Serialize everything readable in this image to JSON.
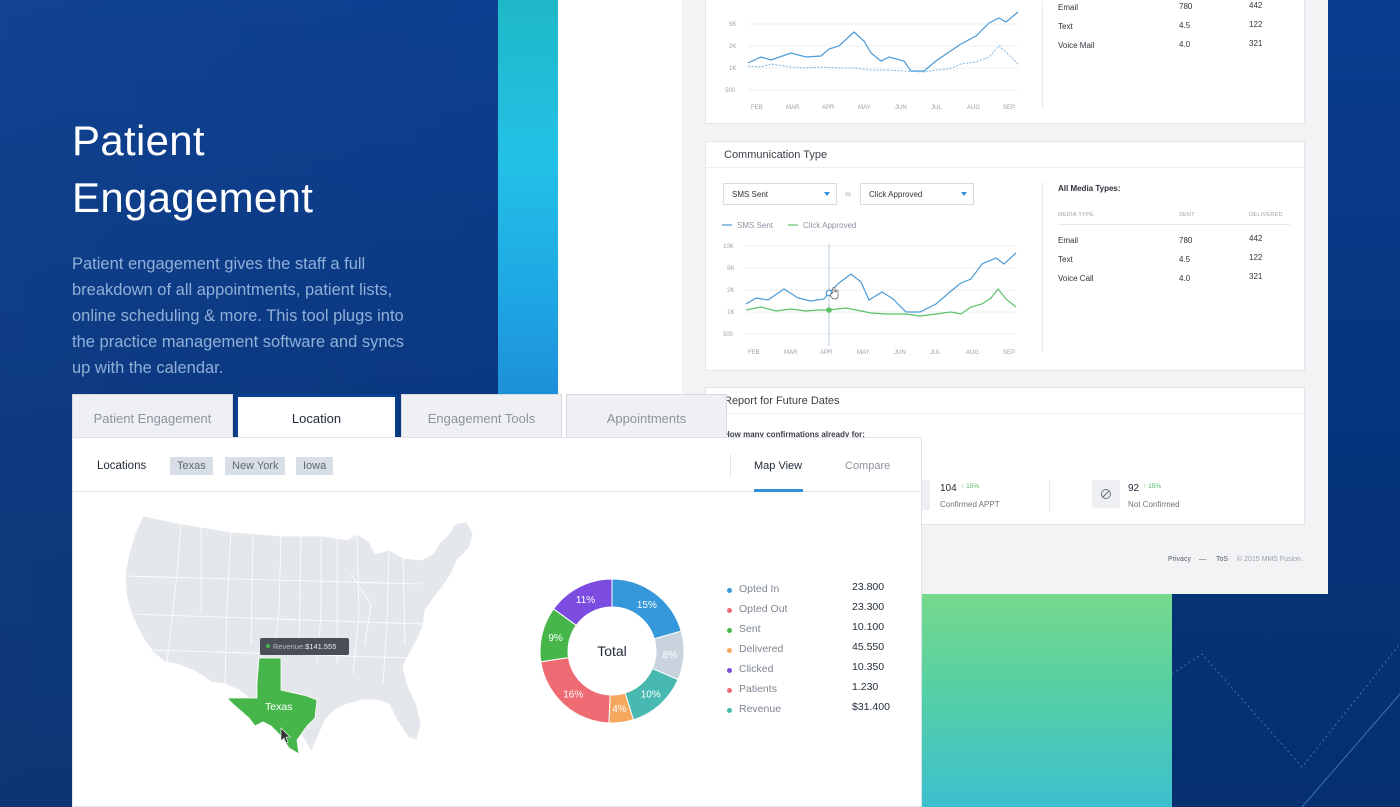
{
  "hero": {
    "title_line1": "Patient",
    "title_line2": "Engagement",
    "description": "Patient engagement gives the staff a full breakdown of all appointments, patient lists, online scheduling & more. This tool plugs into the practice management software and syncs up with the calendar."
  },
  "top_card": {
    "y_ticks": [
      "5K",
      "2K",
      "1K",
      "500"
    ],
    "x_ticks": [
      "FEB",
      "MAR",
      "APR",
      "MAY",
      "JUN",
      "JUL",
      "AUG",
      "SEP"
    ],
    "rows": [
      {
        "type": "Email",
        "sent": "780",
        "delivered": "442"
      },
      {
        "type": "Text",
        "sent": "4.5",
        "delivered": "122"
      },
      {
        "type": "Voice Mail",
        "sent": "4.0",
        "delivered": "321"
      }
    ]
  },
  "comm_card": {
    "title": "Communication Type",
    "select1": "SMS Sent",
    "vs": "vs",
    "select2": "Click Approved",
    "legend1": "SMS Sent",
    "legend2": "Click Approved",
    "y_ticks": [
      "10K",
      "5K",
      "2K",
      "1K",
      "500"
    ],
    "x_ticks": [
      "FEB",
      "MAR",
      "APR",
      "MAY",
      "JUN",
      "JUL",
      "AUG",
      "SEP"
    ],
    "media_title": "All Media Types:",
    "headers": {
      "type": "MEDIA TYPE",
      "sent": "SENT",
      "delivered": "DELIVERED"
    },
    "rows": [
      {
        "type": "Email",
        "sent": "780",
        "delivered": "442"
      },
      {
        "type": "Text",
        "sent": "4.5",
        "delivered": "122"
      },
      {
        "type": "Voice Call",
        "sent": "4.0",
        "delivered": "321"
      }
    ]
  },
  "future_card": {
    "title": "Report for Future Dates",
    "question": "How many confirmations already for:",
    "stats": [
      {
        "value": "104",
        "change": "15%",
        "label": "Confirmed APPT"
      },
      {
        "value": "92",
        "change": "15%",
        "label": "Not Confirmed"
      }
    ]
  },
  "footer": {
    "privacy": "Privacy",
    "sep": "—",
    "tos": "ToS",
    "copyright": "© 2015 MMS Fusion."
  },
  "tabs": [
    "Patient Engagement",
    "Location",
    "Engagement Tools",
    "Appointments"
  ],
  "location_bar": {
    "label": "Locations",
    "chips": [
      "Texas",
      "New York",
      "Iowa"
    ],
    "map_view": "Map View",
    "compare": "Compare"
  },
  "map": {
    "highlight_state": "Texas",
    "tooltip_label": "Revenue:",
    "tooltip_value": "$141.555",
    "highlight_color": "#46b64b"
  },
  "chart_data": {
    "type": "pie",
    "center_label": "Total",
    "slices": [
      {
        "label": "15%",
        "value": 15,
        "color": "#3498db"
      },
      {
        "label": "8%",
        "value": 8,
        "color": "#c9d3de"
      },
      {
        "label": "10%",
        "value": 10,
        "color": "#48b9b1"
      },
      {
        "label": "4%",
        "value": 4,
        "color": "#f5a85d"
      },
      {
        "label": "16%",
        "value": 16,
        "color": "#ee6b73"
      },
      {
        "label": "9%",
        "value": 9,
        "color": "#46b64b"
      },
      {
        "label": "11%",
        "value": 11,
        "color": "#7c4ce0"
      }
    ]
  },
  "legend": [
    {
      "name": "Opted In",
      "value": "23.800",
      "color": "#3498db"
    },
    {
      "name": "Opted Out",
      "value": "23.300",
      "color": "#ee6b73"
    },
    {
      "name": "Sent",
      "value": "10.100",
      "color": "#46b64b"
    },
    {
      "name": "Delivered",
      "value": "45.550",
      "color": "#f5a85d"
    },
    {
      "name": "Clicked",
      "value": "10.350",
      "color": "#7c4ce0"
    },
    {
      "name": "Patients",
      "value": "1.230",
      "color": "#ee6b73"
    },
    {
      "name": "Revenue",
      "value": "$31.400",
      "color": "#48b9b1"
    }
  ]
}
